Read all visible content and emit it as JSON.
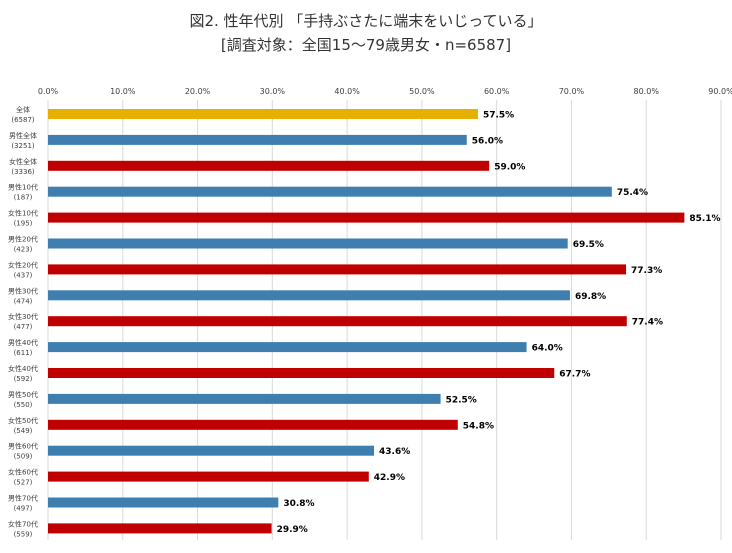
{
  "title_line1": "図2. 性年代別 「手持ぶさたに端末をいじっている」",
  "title_line2": "[調査対象：全国15～79歳男女・n=6587]",
  "colors": {
    "total": "#e6b000",
    "male": "#3f7fb0",
    "female": "#c00000",
    "grid": "#d9d9d9",
    "axis_text": "#404040"
  },
  "chart_data": {
    "type": "bar",
    "orientation": "horizontal",
    "title": "図2. 性年代別 「手持ぶさたに端末をいじっている」",
    "subtitle": "[調査対象：全国15～79歳男女・n=6587]",
    "xlim": [
      0,
      90
    ],
    "xticks": [
      "0.0%",
      "10.0%",
      "20.0%",
      "30.0%",
      "40.0%",
      "50.0%",
      "60.0%",
      "70.0%",
      "80.0%",
      "90.0%"
    ],
    "grid": true,
    "bars": [
      {
        "label": "全体",
        "n": "(6587)",
        "value": 57.5,
        "value_label": "57.5%",
        "group": "total"
      },
      {
        "label": "男性全体",
        "n": "(3251)",
        "value": 56.0,
        "value_label": "56.0%",
        "group": "male"
      },
      {
        "label": "女性全体",
        "n": "(3336)",
        "value": 59.0,
        "value_label": "59.0%",
        "group": "female"
      },
      {
        "label": "男性10代",
        "n": "(187)",
        "value": 75.4,
        "value_label": "75.4%",
        "group": "male"
      },
      {
        "label": "女性10代",
        "n": "(195)",
        "value": 85.1,
        "value_label": "85.1%",
        "group": "female"
      },
      {
        "label": "男性20代",
        "n": "(423)",
        "value": 69.5,
        "value_label": "69.5%",
        "group": "male"
      },
      {
        "label": "女性20代",
        "n": "(437)",
        "value": 77.3,
        "value_label": "77.3%",
        "group": "female"
      },
      {
        "label": "男性30代",
        "n": "(474)",
        "value": 69.8,
        "value_label": "69.8%",
        "group": "male"
      },
      {
        "label": "女性30代",
        "n": "(477)",
        "value": 77.4,
        "value_label": "77.4%",
        "group": "female"
      },
      {
        "label": "男性40代",
        "n": "(611)",
        "value": 64.0,
        "value_label": "64.0%",
        "group": "male"
      },
      {
        "label": "女性40代",
        "n": "(592)",
        "value": 67.7,
        "value_label": "67.7%",
        "group": "female"
      },
      {
        "label": "男性50代",
        "n": "(550)",
        "value": 52.5,
        "value_label": "52.5%",
        "group": "male"
      },
      {
        "label": "女性50代",
        "n": "(549)",
        "value": 54.8,
        "value_label": "54.8%",
        "group": "female"
      },
      {
        "label": "男性60代",
        "n": "(509)",
        "value": 43.6,
        "value_label": "43.6%",
        "group": "male"
      },
      {
        "label": "女性60代",
        "n": "(527)",
        "value": 42.9,
        "value_label": "42.9%",
        "group": "female"
      },
      {
        "label": "男性70代",
        "n": "(497)",
        "value": 30.8,
        "value_label": "30.8%",
        "group": "male"
      },
      {
        "label": "女性70代",
        "n": "(559)",
        "value": 29.9,
        "value_label": "29.9%",
        "group": "female"
      }
    ]
  }
}
